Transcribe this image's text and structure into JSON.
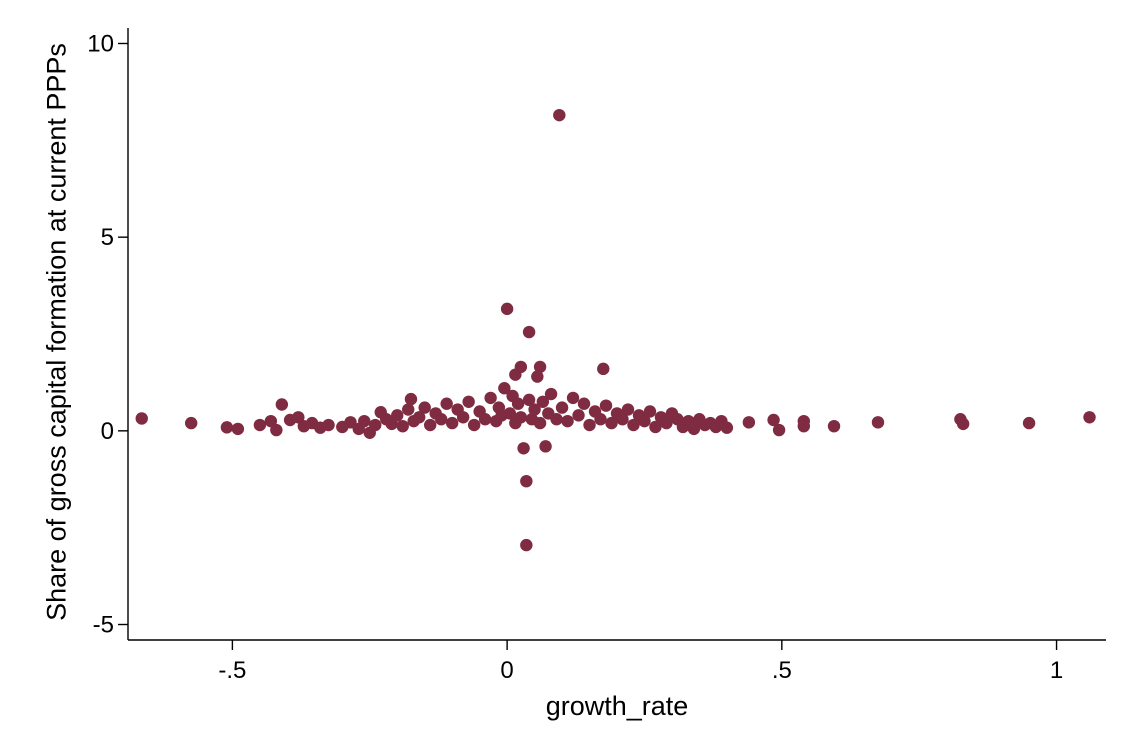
{
  "chart_data": {
    "type": "scatter",
    "title": "",
    "xlabel": "growth_rate",
    "ylabel": "Share of gross capital formation at current PPPs",
    "xlim": [
      -0.69,
      1.09
    ],
    "ylim": [
      -5.4,
      10.4
    ],
    "x_ticks": [
      {
        "value": -0.5,
        "label": "-.5"
      },
      {
        "value": 0,
        "label": "0"
      },
      {
        "value": 0.5,
        "label": ".5"
      },
      {
        "value": 1,
        "label": "1"
      }
    ],
    "y_ticks": [
      {
        "value": -5,
        "label": "-5"
      },
      {
        "value": 0,
        "label": "0"
      },
      {
        "value": 5,
        "label": "5"
      },
      {
        "value": 10,
        "label": "10"
      }
    ],
    "grid": false,
    "legend": "none",
    "marker_color": "#7f2b42",
    "series": [
      {
        "points": [
          [
            -0.665,
            0.32
          ],
          [
            -0.575,
            0.2
          ],
          [
            -0.51,
            0.09
          ],
          [
            -0.49,
            0.05
          ],
          [
            -0.45,
            0.15
          ],
          [
            -0.43,
            0.25
          ],
          [
            -0.42,
            0.02
          ],
          [
            -0.41,
            0.68
          ],
          [
            -0.395,
            0.28
          ],
          [
            -0.38,
            0.35
          ],
          [
            -0.37,
            0.12
          ],
          [
            -0.355,
            0.2
          ],
          [
            -0.34,
            0.08
          ],
          [
            -0.325,
            0.15
          ],
          [
            -0.3,
            0.1
          ],
          [
            -0.285,
            0.22
          ],
          [
            -0.27,
            0.05
          ],
          [
            -0.26,
            0.25
          ],
          [
            -0.25,
            -0.05
          ],
          [
            -0.24,
            0.15
          ],
          [
            -0.23,
            0.48
          ],
          [
            -0.22,
            0.3
          ],
          [
            -0.21,
            0.18
          ],
          [
            -0.2,
            0.4
          ],
          [
            -0.19,
            0.12
          ],
          [
            -0.18,
            0.55
          ],
          [
            -0.175,
            0.82
          ],
          [
            -0.17,
            0.25
          ],
          [
            -0.16,
            0.35
          ],
          [
            -0.15,
            0.6
          ],
          [
            -0.14,
            0.15
          ],
          [
            -0.13,
            0.45
          ],
          [
            -0.12,
            0.3
          ],
          [
            -0.11,
            0.7
          ],
          [
            -0.1,
            0.2
          ],
          [
            -0.09,
            0.55
          ],
          [
            -0.08,
            0.35
          ],
          [
            -0.07,
            0.75
          ],
          [
            -0.06,
            0.15
          ],
          [
            -0.05,
            0.5
          ],
          [
            -0.04,
            0.3
          ],
          [
            -0.03,
            0.85
          ],
          [
            -0.02,
            0.25
          ],
          [
            -0.015,
            0.6
          ],
          [
            -0.01,
            0.4
          ],
          [
            -0.005,
            1.1
          ],
          [
            0.0,
            3.15
          ],
          [
            0.005,
            0.45
          ],
          [
            0.01,
            0.9
          ],
          [
            0.015,
            0.2
          ],
          [
            0.015,
            1.45
          ],
          [
            0.02,
            0.7
          ],
          [
            0.025,
            1.65
          ],
          [
            0.025,
            0.35
          ],
          [
            0.03,
            -0.45
          ],
          [
            0.035,
            -1.3
          ],
          [
            0.035,
            -2.95
          ],
          [
            0.04,
            2.55
          ],
          [
            0.04,
            0.8
          ],
          [
            0.045,
            0.3
          ],
          [
            0.05,
            0.55
          ],
          [
            0.055,
            1.4
          ],
          [
            0.06,
            1.65
          ],
          [
            0.06,
            0.2
          ],
          [
            0.065,
            0.75
          ],
          [
            0.07,
            -0.4
          ],
          [
            0.075,
            0.45
          ],
          [
            0.08,
            0.95
          ],
          [
            0.09,
            0.3
          ],
          [
            0.095,
            8.15
          ],
          [
            0.1,
            0.6
          ],
          [
            0.11,
            0.25
          ],
          [
            0.12,
            0.85
          ],
          [
            0.13,
            0.4
          ],
          [
            0.14,
            0.7
          ],
          [
            0.15,
            0.15
          ],
          [
            0.16,
            0.5
          ],
          [
            0.17,
            0.3
          ],
          [
            0.175,
            1.6
          ],
          [
            0.18,
            0.65
          ],
          [
            0.19,
            0.2
          ],
          [
            0.2,
            0.45
          ],
          [
            0.21,
            0.3
          ],
          [
            0.22,
            0.55
          ],
          [
            0.23,
            0.15
          ],
          [
            0.24,
            0.4
          ],
          [
            0.25,
            0.25
          ],
          [
            0.26,
            0.5
          ],
          [
            0.27,
            0.1
          ],
          [
            0.28,
            0.35
          ],
          [
            0.29,
            0.2
          ],
          [
            0.3,
            0.45
          ],
          [
            0.31,
            0.3
          ],
          [
            0.32,
            0.1
          ],
          [
            0.33,
            0.25
          ],
          [
            0.34,
            0.05
          ],
          [
            0.35,
            0.3
          ],
          [
            0.36,
            0.15
          ],
          [
            0.37,
            0.2
          ],
          [
            0.38,
            0.1
          ],
          [
            0.39,
            0.25
          ],
          [
            0.4,
            0.08
          ],
          [
            0.44,
            0.22
          ],
          [
            0.485,
            0.28
          ],
          [
            0.495,
            0.02
          ],
          [
            0.54,
            0.25
          ],
          [
            0.54,
            0.12
          ],
          [
            0.595,
            0.12
          ],
          [
            0.675,
            0.22
          ],
          [
            0.825,
            0.3
          ],
          [
            0.83,
            0.18
          ],
          [
            0.95,
            0.2
          ],
          [
            1.06,
            0.35
          ]
        ]
      }
    ]
  }
}
